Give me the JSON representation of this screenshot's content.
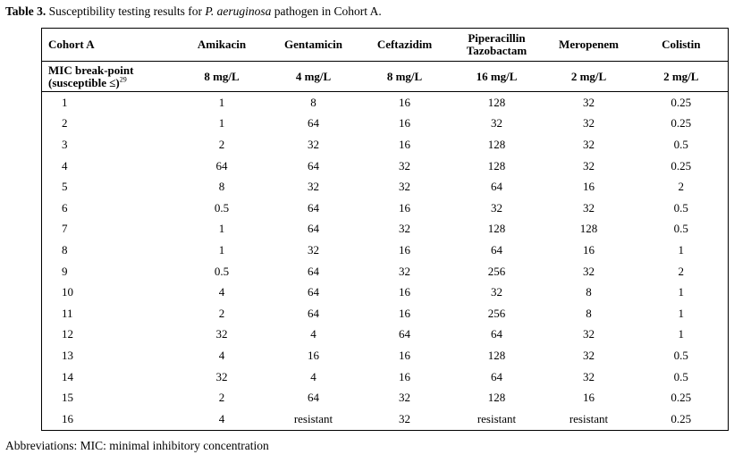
{
  "caption": {
    "label": "Table 3.",
    "text_before": " Susceptibility testing results for ",
    "organism": "P. aeruginosa",
    "text_after": " pathogen in Cohort A."
  },
  "table": {
    "headers": [
      "Cohort A",
      "Amikacin",
      "Gentamicin",
      "Ceftazidim",
      "Piperacillin",
      "Tazobactam",
      "Meropenem",
      "Colistin"
    ],
    "breakpoint": {
      "label_line1": "MIC break-point",
      "label_line2": "(susceptible ≤)",
      "label_ref": "29",
      "values": [
        "8 mg/L",
        "4 mg/L",
        "8 mg/L",
        "16 mg/L",
        "2 mg/L",
        "2 mg/L"
      ]
    },
    "rows": [
      [
        "1",
        "1",
        "8",
        "16",
        "128",
        "32",
        "0.25"
      ],
      [
        "2",
        "1",
        "64",
        "16",
        "32",
        "32",
        "0.25"
      ],
      [
        "3",
        "2",
        "32",
        "16",
        "128",
        "32",
        "0.5"
      ],
      [
        "4",
        "64",
        "64",
        "32",
        "128",
        "32",
        "0.25"
      ],
      [
        "5",
        "8",
        "32",
        "32",
        "64",
        "16",
        "2"
      ],
      [
        "6",
        "0.5",
        "64",
        "16",
        "32",
        "32",
        "0.5"
      ],
      [
        "7",
        "1",
        "64",
        "32",
        "128",
        "128",
        "0.5"
      ],
      [
        "8",
        "1",
        "32",
        "16",
        "64",
        "16",
        "1"
      ],
      [
        "9",
        "0.5",
        "64",
        "32",
        "256",
        "32",
        "2"
      ],
      [
        "10",
        "4",
        "64",
        "16",
        "32",
        "8",
        "1"
      ],
      [
        "11",
        "2",
        "64",
        "16",
        "256",
        "8",
        "1"
      ],
      [
        "12",
        "32",
        "4",
        "64",
        "64",
        "32",
        "1"
      ],
      [
        "13",
        "4",
        "16",
        "16",
        "128",
        "32",
        "0.5"
      ],
      [
        "14",
        "32",
        "4",
        "16",
        "64",
        "32",
        "0.5"
      ],
      [
        "15",
        "2",
        "64",
        "32",
        "128",
        "16",
        "0.25"
      ],
      [
        "16",
        "4",
        "resistant",
        "32",
        "resistant",
        "resistant",
        "0.25"
      ]
    ]
  },
  "footer": "Abbreviations: MIC: minimal inhibitory concentration"
}
